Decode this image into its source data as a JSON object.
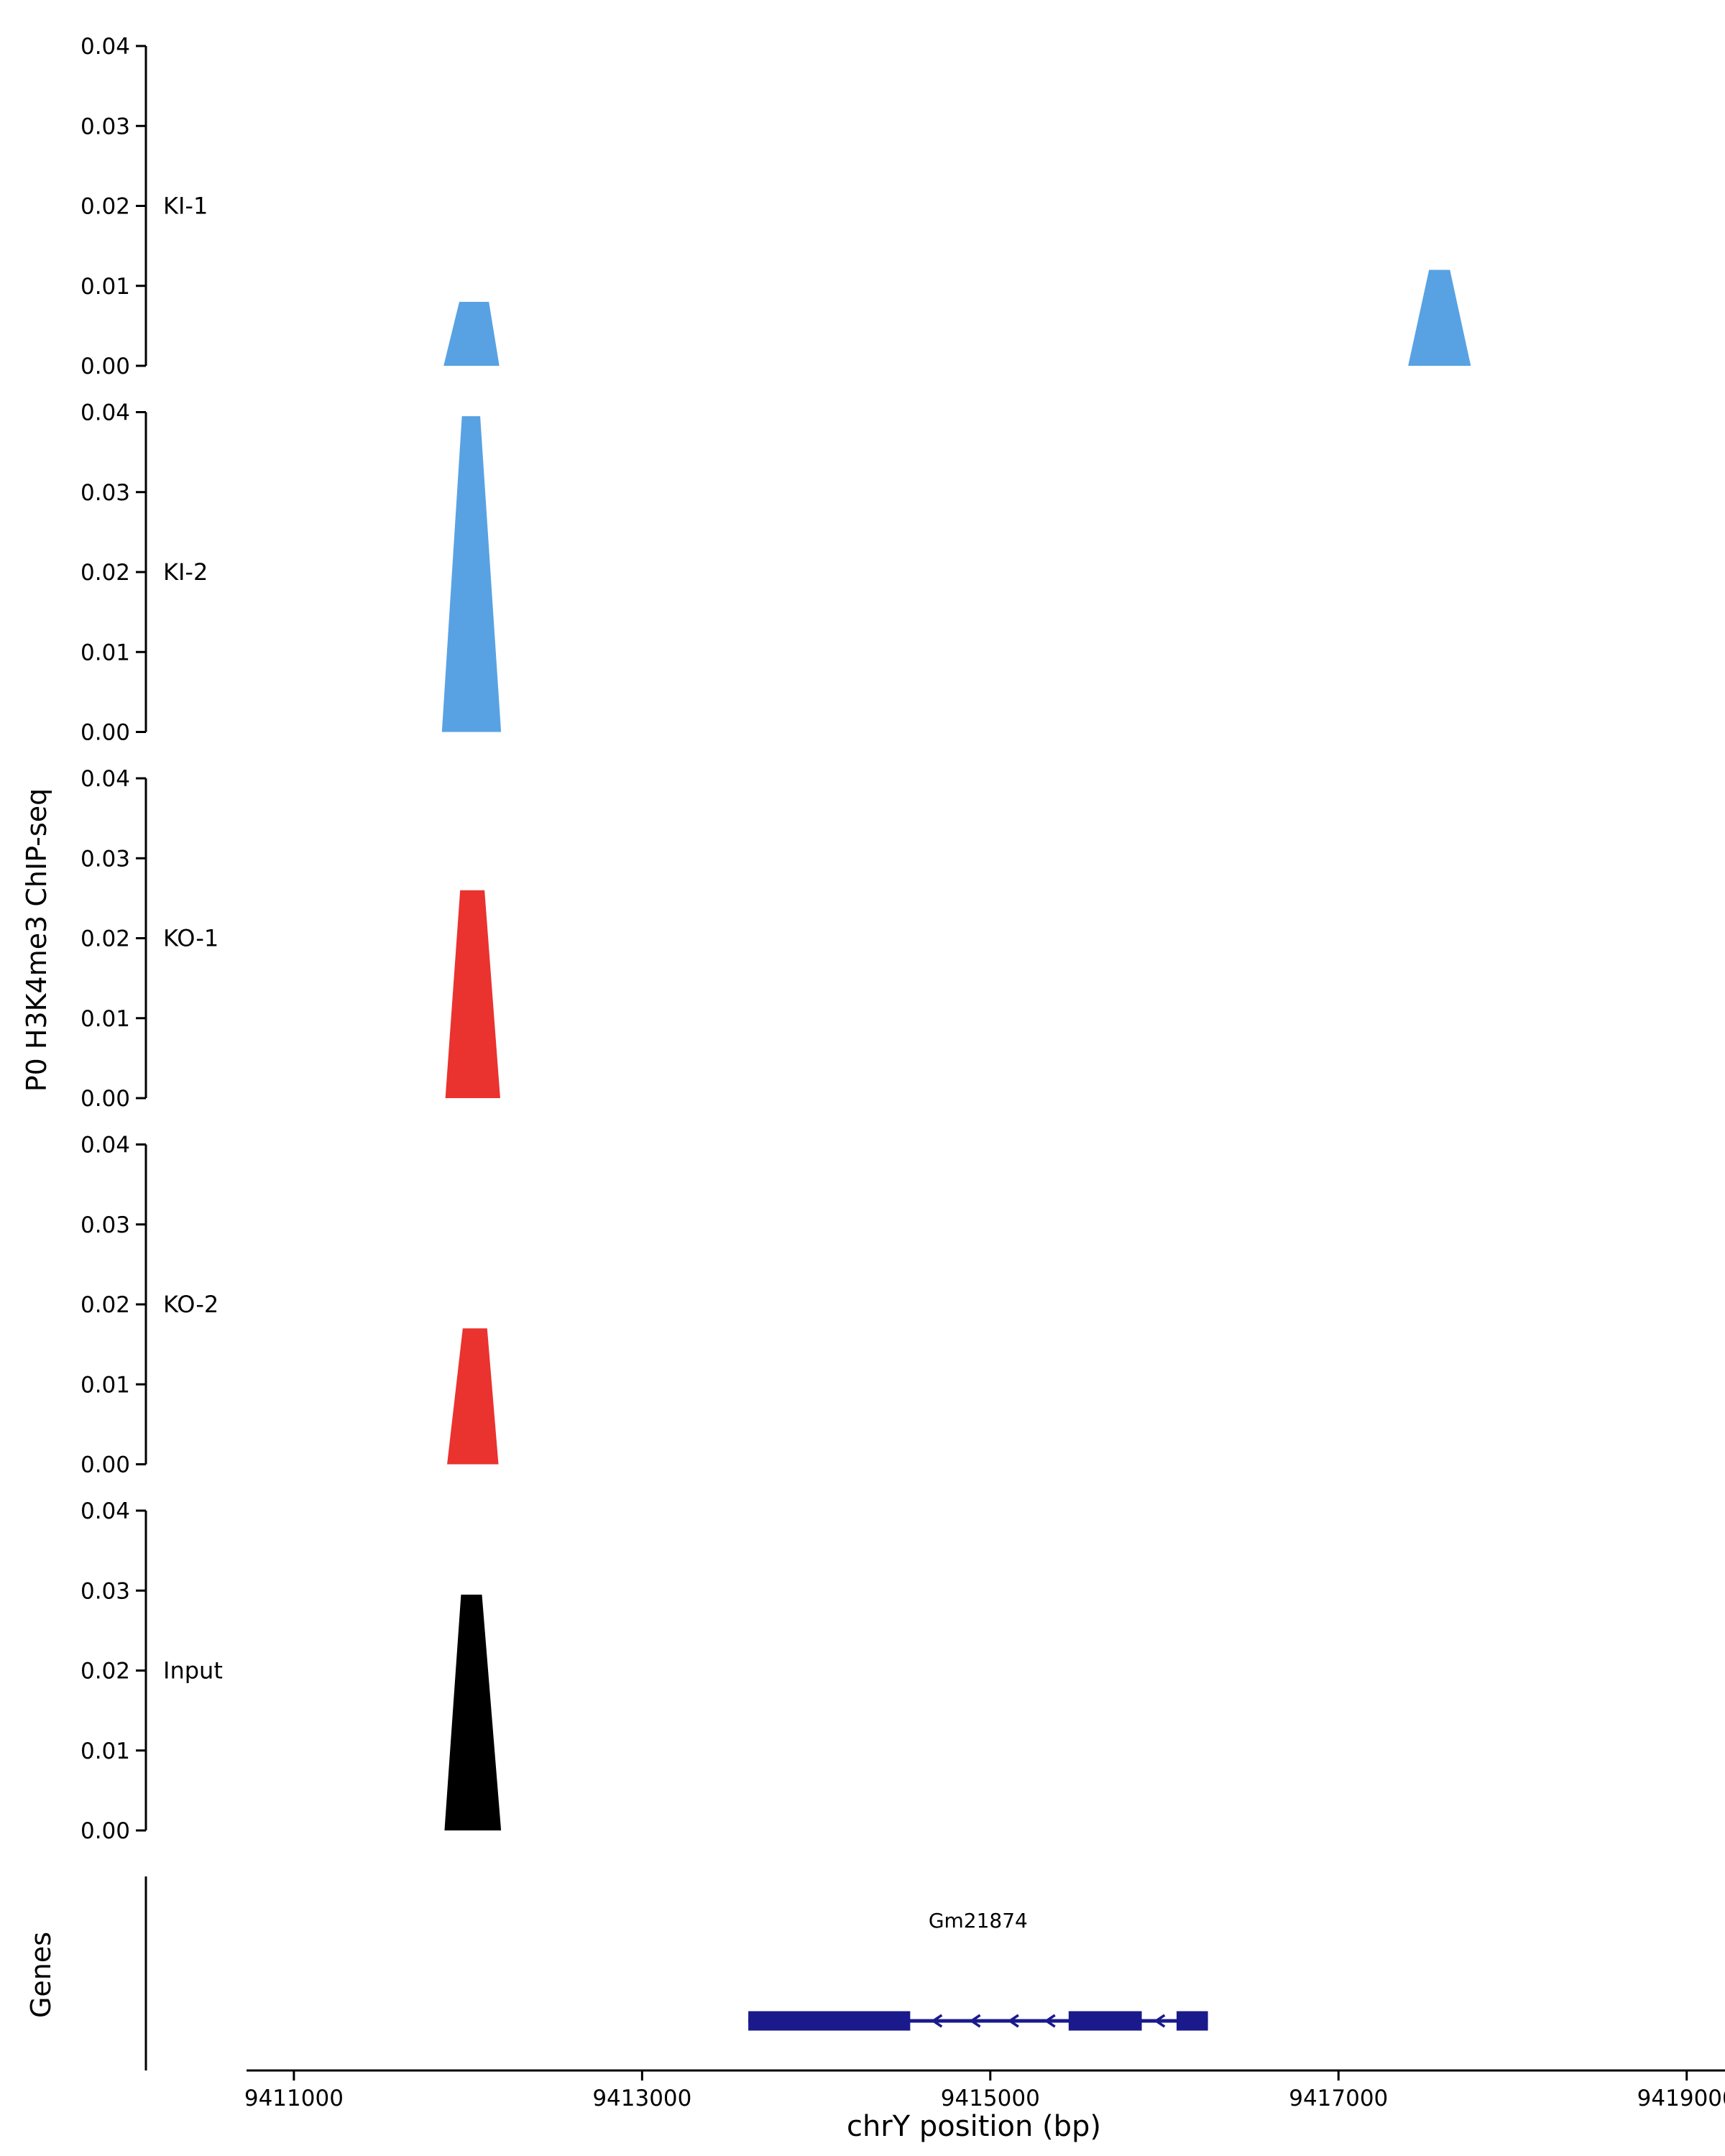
{
  "chart_data": {
    "type": "area",
    "title": "",
    "xlabel": "chrY position (bp)",
    "ylabel": "P0 H3K4me3 ChIP-seq",
    "xlim": [
      9410150,
      9419220
    ],
    "x_ticks": [
      9411000,
      9413000,
      9415000,
      9417000,
      9419000
    ],
    "x_tick_labels": [
      "9411000",
      "9413000",
      "9415000",
      "9417000",
      "9419000"
    ],
    "ylim": [
      0,
      0.04
    ],
    "y_ticks": [
      0.0,
      0.01,
      0.02,
      0.03,
      0.04
    ],
    "y_tick_labels": [
      "0.00",
      "0.01",
      "0.02",
      "0.03",
      "0.04"
    ],
    "grid": false,
    "legend": "none",
    "tracks": [
      {
        "label": "KI-1",
        "color": "#58A2E4",
        "peaks": [
          {
            "points_bp": [
              9411860,
              9411950,
              9412120,
              9412180
            ],
            "height": 0.008
          },
          {
            "points_bp": [
              9417400,
              9417520,
              9417640,
              9417760
            ],
            "height": 0.012
          }
        ]
      },
      {
        "label": "KI-2",
        "color": "#58A2E4",
        "peaks": [
          {
            "points_bp": [
              9411850,
              9411965,
              9412070,
              9412190
            ],
            "height": 0.0395
          }
        ]
      },
      {
        "label": "KO-1",
        "color": "#EA322F",
        "peaks": [
          {
            "points_bp": [
              9411870,
              9411955,
              9412095,
              9412185
            ],
            "height": 0.026
          }
        ]
      },
      {
        "label": "KO-2",
        "color": "#EA322F",
        "peaks": [
          {
            "points_bp": [
              9411880,
              9411970,
              9412110,
              9412175
            ],
            "height": 0.017
          }
        ]
      },
      {
        "label": "Input",
        "color": "#000000",
        "peaks": [
          {
            "points_bp": [
              9411865,
              9411960,
              9412080,
              9412190
            ],
            "height": 0.0295
          }
        ]
      }
    ],
    "gene_track": {
      "label": "Genes",
      "genes": [
        {
          "name": "Gm21874",
          "strand": "-",
          "color": "#1A1A8C",
          "start": 9413610,
          "end": 9416250,
          "exons": [
            [
              9413610,
              9414540
            ],
            [
              9415450,
              9415870
            ],
            [
              9416070,
              9416250
            ]
          ],
          "arrow_positions_bp": [
            9414680,
            9414900,
            9415120,
            9415330,
            9415960
          ]
        }
      ]
    }
  }
}
